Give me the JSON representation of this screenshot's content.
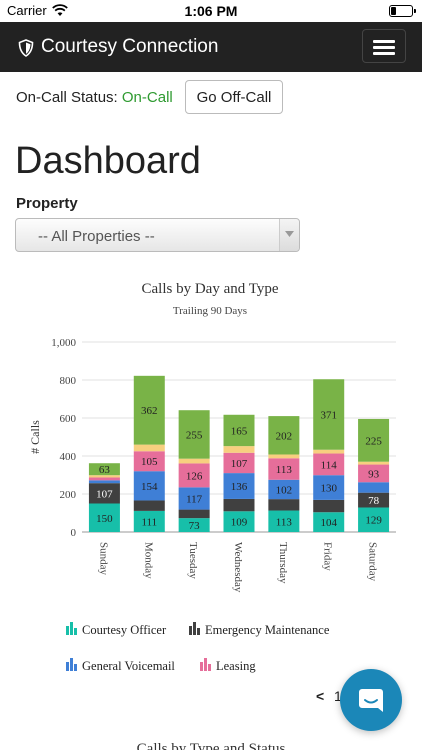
{
  "status_bar": {
    "carrier": "Carrier",
    "time": "1:06 PM",
    "battery_level": 0.25
  },
  "navbar": {
    "brand": "Courtesy Connection",
    "brand_icon": "shield-icon",
    "menu_icon": "hamburger-icon"
  },
  "oncall": {
    "label": "On-Call Status:",
    "state": "On-Call",
    "state_color": "#2e9a30",
    "button_label": "Go Off-Call"
  },
  "page_title": "Dashboard",
  "property": {
    "label": "Property",
    "selected": "-- All Properties --"
  },
  "chart_data": {
    "type": "bar",
    "stacked": true,
    "title": "Calls by Day and Type",
    "subtitle": "Trailing 90 Days",
    "ylabel": "# Calls",
    "ylim": [
      0,
      1000
    ],
    "yticks": [
      "0",
      "200",
      "400",
      "600",
      "800",
      "1,000"
    ],
    "ytick_values": [
      0,
      200,
      400,
      600,
      800,
      1000
    ],
    "grid": true,
    "legend_position": "bottom",
    "categories": [
      "Sunday",
      "Monday",
      "Tuesday",
      "Wednesday",
      "Thursday",
      "Friday",
      "Saturday"
    ],
    "series": [
      {
        "name": "Courtesy Officer",
        "color": "#17bfa9",
        "values": [
          150,
          111,
          73,
          109,
          113,
          104,
          129
        ],
        "labels": [
          "150",
          "111",
          "73",
          "109",
          "113",
          "104",
          "129"
        ]
      },
      {
        "name": "Emergency Maintenance",
        "color": "#404040",
        "values": [
          107,
          55,
          45,
          65,
          60,
          65,
          78
        ],
        "labels": [
          "107",
          "",
          "",
          "",
          "",
          "",
          "78"
        ]
      },
      {
        "name": "General Voicemail",
        "color": "#3f7fd6",
        "values": [
          15,
          154,
          117,
          136,
          102,
          130,
          55
        ],
        "labels": [
          "",
          "154",
          "117",
          "136",
          "102",
          "130",
          ""
        ]
      },
      {
        "name": "Leasing",
        "color": "#e66e9a",
        "values": [
          15,
          105,
          126,
          107,
          113,
          114,
          93
        ],
        "labels": [
          "",
          "105",
          "126",
          "107",
          "113",
          "114",
          "93"
        ]
      },
      {
        "name": "",
        "color": "#f7cf7f",
        "values": [
          12,
          35,
          25,
          35,
          20,
          20,
          15
        ],
        "labels": [
          "",
          "",
          "",
          "",
          "",
          "",
          ""
        ]
      },
      {
        "name": "",
        "color": "#79b347",
        "values": [
          63,
          362,
          255,
          165,
          202,
          371,
          225
        ],
        "labels": [
          "63",
          "362",
          "255",
          "165",
          "202",
          "371",
          "225"
        ]
      }
    ]
  },
  "pager": {
    "prev_symbol": "<",
    "page": "1"
  },
  "chat_icon": "chat-bubble-icon",
  "next_chart_title": "Calls by Type and Status"
}
